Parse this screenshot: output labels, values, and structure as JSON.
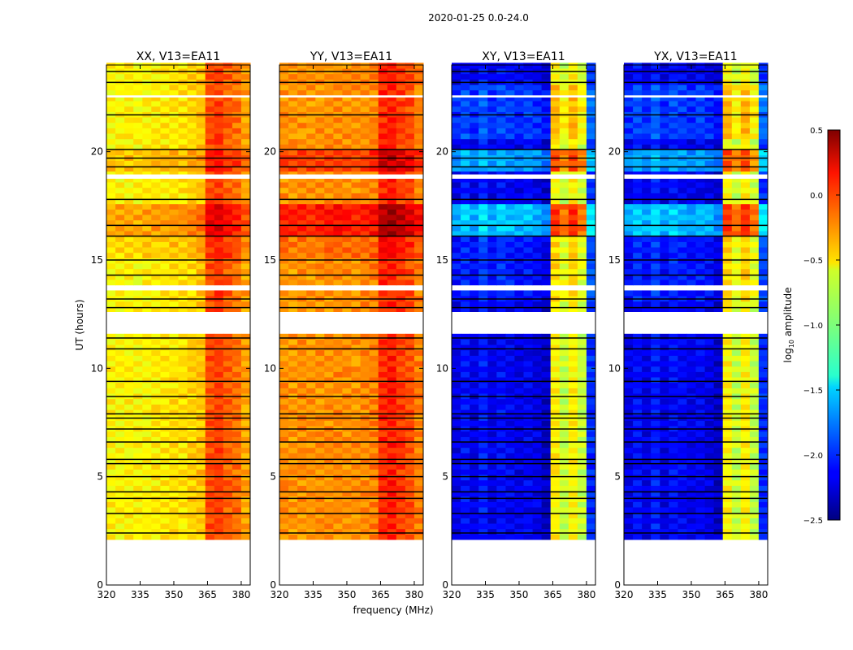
{
  "chart_data": {
    "type": "heatmap",
    "title": "2020-01-25 0.0-24.0",
    "xlabel": "frequency (MHz)",
    "ylabel": "UT (hours)",
    "xlim": [
      320,
      384
    ],
    "ylim": [
      0,
      24
    ],
    "xticks": [
      "320",
      "335",
      "350",
      "365",
      "380"
    ],
    "xtick_values": [
      320,
      335,
      350,
      365,
      380
    ],
    "yticks": [
      "0",
      "5",
      "10",
      "15",
      "20"
    ],
    "ytick_values": [
      0,
      5,
      10,
      15,
      20
    ],
    "colorbar": {
      "label": "log10 amplitude",
      "label_main": "log",
      "label_sub": "10",
      "label_rest": " amplitude",
      "range": [
        -2.5,
        0.5
      ],
      "ticks": [
        "0.5",
        "0.0",
        "−0.5",
        "−1.0",
        "−1.5",
        "−2.0",
        "−2.5"
      ],
      "tick_values": [
        0.5,
        0.0,
        -0.5,
        -1.0,
        -1.5,
        -2.0,
        -2.5
      ],
      "colormap": "jet"
    },
    "freq_bins_mhz": [
      320,
      324,
      328,
      332,
      336,
      340,
      344,
      348,
      352,
      356,
      360,
      364,
      368,
      372,
      376,
      380
    ],
    "data_time_range": [
      2.1,
      24.0
    ],
    "time_step_hours": 0.25,
    "flagged_blank_ranges": [
      [
        0,
        2.1
      ],
      [
        11.6,
        12.6
      ],
      [
        18.75,
        18.95
      ],
      [
        13.6,
        13.75
      ],
      [
        22.5,
        22.6
      ]
    ],
    "flagged_black_lines": [
      2.4,
      3.3,
      4.0,
      4.3,
      5.0,
      5.6,
      5.8,
      6.6,
      7.2,
      7.7,
      7.9,
      8.7,
      9.4,
      10.9,
      11.4,
      12.8,
      13.2,
      14.3,
      15.0,
      16.1,
      16.6,
      17.8,
      19.3,
      19.7,
      20.1,
      21.7,
      23.2,
      23.7
    ],
    "panels": [
      {
        "title": "XX, V13=EA11",
        "freq_profile": [
          -0.6,
          -0.62,
          -0.6,
          -0.62,
          -0.6,
          -0.58,
          -0.57,
          -0.55,
          -0.55,
          -0.5,
          -0.45,
          -0.1,
          -0.05,
          -0.15,
          -0.2,
          -0.35
        ],
        "time_offsets": [
          [
            16.2,
            17.7,
            0.25
          ],
          [
            19.0,
            20.0,
            0.15
          ],
          [
            15.0,
            16.2,
            0.1
          ]
        ]
      },
      {
        "title": "YY, V13=EA11",
        "freq_profile": [
          -0.3,
          -0.32,
          -0.3,
          -0.32,
          -0.3,
          -0.3,
          -0.28,
          -0.3,
          -0.3,
          -0.28,
          -0.25,
          0.0,
          0.05,
          -0.05,
          -0.1,
          -0.25
        ],
        "time_offsets": [
          [
            16.2,
            17.7,
            0.35
          ],
          [
            19.0,
            20.0,
            0.25
          ],
          [
            15.0,
            16.2,
            0.1
          ]
        ]
      },
      {
        "title": "XY, V13=EA11",
        "freq_profile": [
          -2.2,
          -2.1,
          -2.2,
          -2.05,
          -2.2,
          -2.1,
          -2.15,
          -2.2,
          -2.15,
          -2.2,
          -2.3,
          -0.6,
          -0.8,
          -0.6,
          -0.8,
          -2.0
        ],
        "time_offsets": [
          [
            16.2,
            17.7,
            0.6
          ],
          [
            19.0,
            20.0,
            0.5
          ],
          [
            13.0,
            16.0,
            0.1
          ],
          [
            20.5,
            23.0,
            0.2
          ]
        ]
      },
      {
        "title": "YX, V13=EA11",
        "freq_profile": [
          -2.2,
          -2.1,
          -2.2,
          -2.05,
          -2.2,
          -2.1,
          -2.15,
          -2.2,
          -2.15,
          -2.2,
          -2.3,
          -0.6,
          -0.8,
          -0.6,
          -0.8,
          -2.0
        ],
        "time_offsets": [
          [
            16.2,
            17.7,
            0.6
          ],
          [
            19.0,
            20.0,
            0.5
          ],
          [
            13.0,
            16.0,
            0.1
          ],
          [
            20.5,
            23.0,
            0.2
          ]
        ]
      }
    ]
  }
}
